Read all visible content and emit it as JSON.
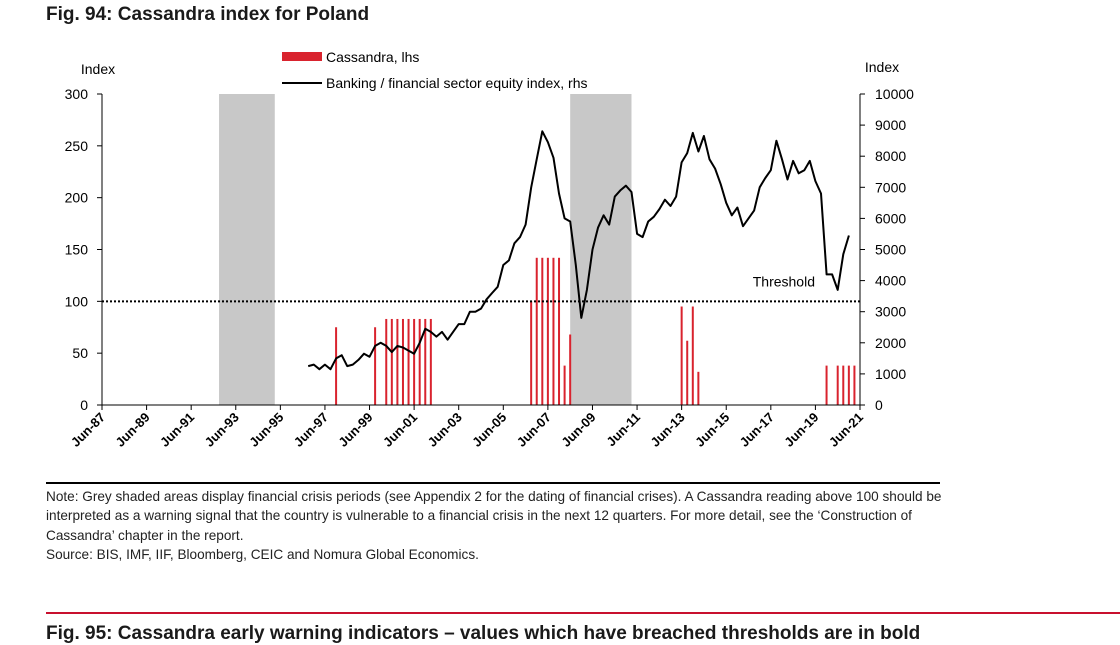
{
  "figure_title": "Fig. 94: Cassandra index for Poland",
  "note_text": "Note: Grey shaded areas display financial crisis periods (see Appendix 2 for the dating of financial crises). A Cassandra reading above 100 should be interpreted as a warning signal that the country is vulnerable to a financial crisis in the next 12 quarters. For more detail, see the ‘Construction of Cassandra’ chapter in the report.",
  "source_text": "Source: BIS, IMF, IIF, Bloomberg, CEIC and Nomura Global Economics.",
  "next_figure_title": "Fig. 95: Cassandra early warning indicators – values which have breached thresholds are in bold",
  "colors": {
    "bar": "#d9232e",
    "line": "#000000",
    "shade": "#c8c8c8",
    "rule": "#c8102e"
  },
  "chart_data": {
    "type": "bar+line",
    "title": "Fig. 94: Cassandra index for Poland",
    "ylabel_left": "Index",
    "ylabel_right": "Index",
    "ylim_left": [
      0,
      300
    ],
    "ylim_right": [
      0,
      10000
    ],
    "yticks_left": [
      "0",
      "50",
      "100",
      "150",
      "200",
      "250",
      "300"
    ],
    "yticks_right": [
      "0",
      "1000",
      "2000",
      "3000",
      "4000",
      "5000",
      "6000",
      "7000",
      "8000",
      "9000",
      "10000"
    ],
    "xlim": [
      "1987-06",
      "2021-06"
    ],
    "xticks": [
      "Jun-87",
      "Jun-89",
      "Jun-91",
      "Jun-93",
      "Jun-95",
      "Jun-97",
      "Jun-99",
      "Jun-01",
      "Jun-03",
      "Jun-05",
      "Jun-07",
      "Jun-09",
      "Jun-11",
      "Jun-13",
      "Jun-15",
      "Jun-17",
      "Jun-19",
      "Jun-21"
    ],
    "grid": false,
    "legend": {
      "position": "top-center",
      "entries": [
        {
          "label": "Cassandra, lhs",
          "type": "bar"
        },
        {
          "label": "Banking / financial sector equity index, rhs",
          "type": "line"
        }
      ]
    },
    "threshold": {
      "label": "Threshold",
      "value": 100,
      "axis": "left",
      "style": "dotted"
    },
    "crisis_periods": [
      {
        "start": "1992-09",
        "end": "1995-03"
      },
      {
        "start": "2008-06",
        "end": "2011-03"
      }
    ],
    "series": [
      {
        "name": "Cassandra, lhs",
        "type": "bar",
        "axis": "left",
        "points": [
          {
            "x": "1997-12",
            "y": 75
          },
          {
            "x": "1999-09",
            "y": 75
          },
          {
            "x": "2000-03",
            "y": 83
          },
          {
            "x": "2000-06",
            "y": 83
          },
          {
            "x": "2000-09",
            "y": 83
          },
          {
            "x": "2000-12",
            "y": 83
          },
          {
            "x": "2001-03",
            "y": 83
          },
          {
            "x": "2001-06",
            "y": 83
          },
          {
            "x": "2001-09",
            "y": 83
          },
          {
            "x": "2001-12",
            "y": 83
          },
          {
            "x": "2002-03",
            "y": 83
          },
          {
            "x": "2006-09",
            "y": 100
          },
          {
            "x": "2006-12",
            "y": 142
          },
          {
            "x": "2007-03",
            "y": 142
          },
          {
            "x": "2007-06",
            "y": 142
          },
          {
            "x": "2007-09",
            "y": 142
          },
          {
            "x": "2007-12",
            "y": 142
          },
          {
            "x": "2008-03",
            "y": 38
          },
          {
            "x": "2008-06",
            "y": 68
          },
          {
            "x": "2013-06",
            "y": 95
          },
          {
            "x": "2013-09",
            "y": 62
          },
          {
            "x": "2013-12",
            "y": 95
          },
          {
            "x": "2014-03",
            "y": 32
          },
          {
            "x": "2019-12",
            "y": 38
          },
          {
            "x": "2020-06",
            "y": 38
          },
          {
            "x": "2020-09",
            "y": 38
          },
          {
            "x": "2020-12",
            "y": 38
          },
          {
            "x": "2021-03",
            "y": 38
          }
        ]
      },
      {
        "name": "Banking / financial sector equity index, rhs",
        "type": "line",
        "axis": "right",
        "points": [
          {
            "x": "1996-09",
            "y": 1250
          },
          {
            "x": "1996-12",
            "y": 1300
          },
          {
            "x": "1997-03",
            "y": 1150
          },
          {
            "x": "1997-06",
            "y": 1300
          },
          {
            "x": "1997-09",
            "y": 1150
          },
          {
            "x": "1997-12",
            "y": 1500
          },
          {
            "x": "1998-03",
            "y": 1600
          },
          {
            "x": "1998-06",
            "y": 1250
          },
          {
            "x": "1998-09",
            "y": 1300
          },
          {
            "x": "1998-12",
            "y": 1450
          },
          {
            "x": "1999-03",
            "y": 1650
          },
          {
            "x": "1999-06",
            "y": 1550
          },
          {
            "x": "1999-09",
            "y": 1900
          },
          {
            "x": "1999-12",
            "y": 2000
          },
          {
            "x": "2000-03",
            "y": 1900
          },
          {
            "x": "2000-06",
            "y": 1700
          },
          {
            "x": "2000-09",
            "y": 1900
          },
          {
            "x": "2000-12",
            "y": 1850
          },
          {
            "x": "2001-03",
            "y": 1750
          },
          {
            "x": "2001-06",
            "y": 1650
          },
          {
            "x": "2001-09",
            "y": 2000
          },
          {
            "x": "2001-12",
            "y": 2450
          },
          {
            "x": "2002-03",
            "y": 2350
          },
          {
            "x": "2002-06",
            "y": 2200
          },
          {
            "x": "2002-09",
            "y": 2350
          },
          {
            "x": "2002-12",
            "y": 2100
          },
          {
            "x": "2003-03",
            "y": 2350
          },
          {
            "x": "2003-06",
            "y": 2600
          },
          {
            "x": "2003-09",
            "y": 2600
          },
          {
            "x": "2003-12",
            "y": 3000
          },
          {
            "x": "2004-03",
            "y": 3000
          },
          {
            "x": "2004-06",
            "y": 3100
          },
          {
            "x": "2004-09",
            "y": 3400
          },
          {
            "x": "2004-12",
            "y": 3600
          },
          {
            "x": "2005-03",
            "y": 3800
          },
          {
            "x": "2005-06",
            "y": 4500
          },
          {
            "x": "2005-09",
            "y": 4650
          },
          {
            "x": "2005-12",
            "y": 5200
          },
          {
            "x": "2006-03",
            "y": 5400
          },
          {
            "x": "2006-06",
            "y": 5800
          },
          {
            "x": "2006-09",
            "y": 7000
          },
          {
            "x": "2006-12",
            "y": 7900
          },
          {
            "x": "2007-03",
            "y": 8800
          },
          {
            "x": "2007-06",
            "y": 8450
          },
          {
            "x": "2007-09",
            "y": 7950
          },
          {
            "x": "2007-12",
            "y": 6800
          },
          {
            "x": "2008-03",
            "y": 6000
          },
          {
            "x": "2008-06",
            "y": 5900
          },
          {
            "x": "2008-09",
            "y": 4500
          },
          {
            "x": "2008-12",
            "y": 2800
          },
          {
            "x": "2009-03",
            "y": 3700
          },
          {
            "x": "2009-06",
            "y": 5000
          },
          {
            "x": "2009-09",
            "y": 5700
          },
          {
            "x": "2009-12",
            "y": 6100
          },
          {
            "x": "2010-03",
            "y": 5800
          },
          {
            "x": "2010-06",
            "y": 6700
          },
          {
            "x": "2010-09",
            "y": 6900
          },
          {
            "x": "2010-12",
            "y": 7050
          },
          {
            "x": "2011-03",
            "y": 6850
          },
          {
            "x": "2011-06",
            "y": 5500
          },
          {
            "x": "2011-09",
            "y": 5400
          },
          {
            "x": "2011-12",
            "y": 5900
          },
          {
            "x": "2012-03",
            "y": 6050
          },
          {
            "x": "2012-06",
            "y": 6300
          },
          {
            "x": "2012-09",
            "y": 6600
          },
          {
            "x": "2012-12",
            "y": 6400
          },
          {
            "x": "2013-03",
            "y": 6700
          },
          {
            "x": "2013-06",
            "y": 7800
          },
          {
            "x": "2013-09",
            "y": 8100
          },
          {
            "x": "2013-12",
            "y": 8750
          },
          {
            "x": "2014-03",
            "y": 8150
          },
          {
            "x": "2014-06",
            "y": 8650
          },
          {
            "x": "2014-09",
            "y": 7900
          },
          {
            "x": "2014-12",
            "y": 7600
          },
          {
            "x": "2015-03",
            "y": 7100
          },
          {
            "x": "2015-06",
            "y": 6500
          },
          {
            "x": "2015-09",
            "y": 6100
          },
          {
            "x": "2015-12",
            "y": 6350
          },
          {
            "x": "2016-03",
            "y": 5750
          },
          {
            "x": "2016-06",
            "y": 6000
          },
          {
            "x": "2016-09",
            "y": 6250
          },
          {
            "x": "2016-12",
            "y": 7000
          },
          {
            "x": "2017-03",
            "y": 7300
          },
          {
            "x": "2017-06",
            "y": 7550
          },
          {
            "x": "2017-09",
            "y": 8500
          },
          {
            "x": "2017-12",
            "y": 7900
          },
          {
            "x": "2018-03",
            "y": 7250
          },
          {
            "x": "2018-06",
            "y": 7850
          },
          {
            "x": "2018-09",
            "y": 7450
          },
          {
            "x": "2018-12",
            "y": 7550
          },
          {
            "x": "2019-03",
            "y": 7850
          },
          {
            "x": "2019-06",
            "y": 7200
          },
          {
            "x": "2019-09",
            "y": 6800
          },
          {
            "x": "2019-12",
            "y": 4200
          },
          {
            "x": "2020-03",
            "y": 4200
          },
          {
            "x": "2020-06",
            "y": 3700
          },
          {
            "x": "2020-09",
            "y": 4850
          },
          {
            "x": "2020-12",
            "y": 5450
          }
        ]
      }
    ]
  }
}
